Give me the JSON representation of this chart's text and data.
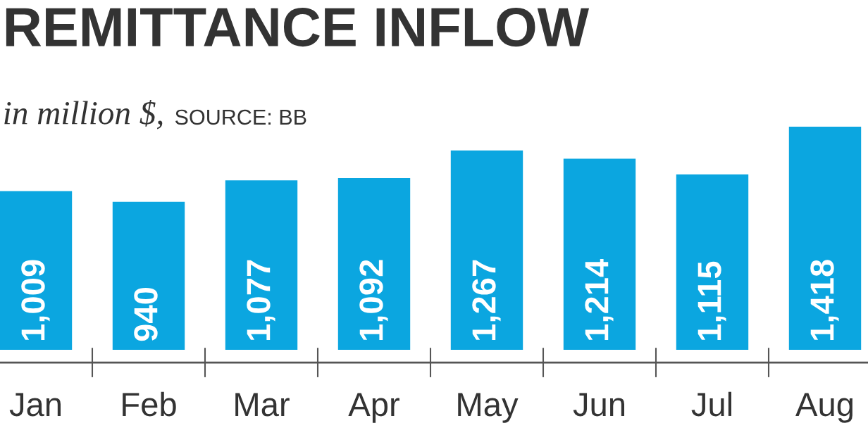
{
  "chart_data": {
    "type": "bar",
    "title": "REMITTANCE INFLOW",
    "subtitle": "in million $,",
    "annotations": [
      "SOURCE: BB"
    ],
    "categories": [
      "Jan",
      "Feb",
      "Mar",
      "Apr",
      "May",
      "Jun",
      "Jul",
      "Aug"
    ],
    "values": [
      1009,
      940,
      1077,
      1092,
      1267,
      1214,
      1115,
      1418
    ],
    "color": "#0ba6e0",
    "value_labels": [
      "1,009",
      "940",
      "1,077",
      "1,092",
      "1,267",
      "1,214",
      "1,115",
      "1,418"
    ],
    "grid": false,
    "legend": false,
    "tick_labels": "x"
  }
}
